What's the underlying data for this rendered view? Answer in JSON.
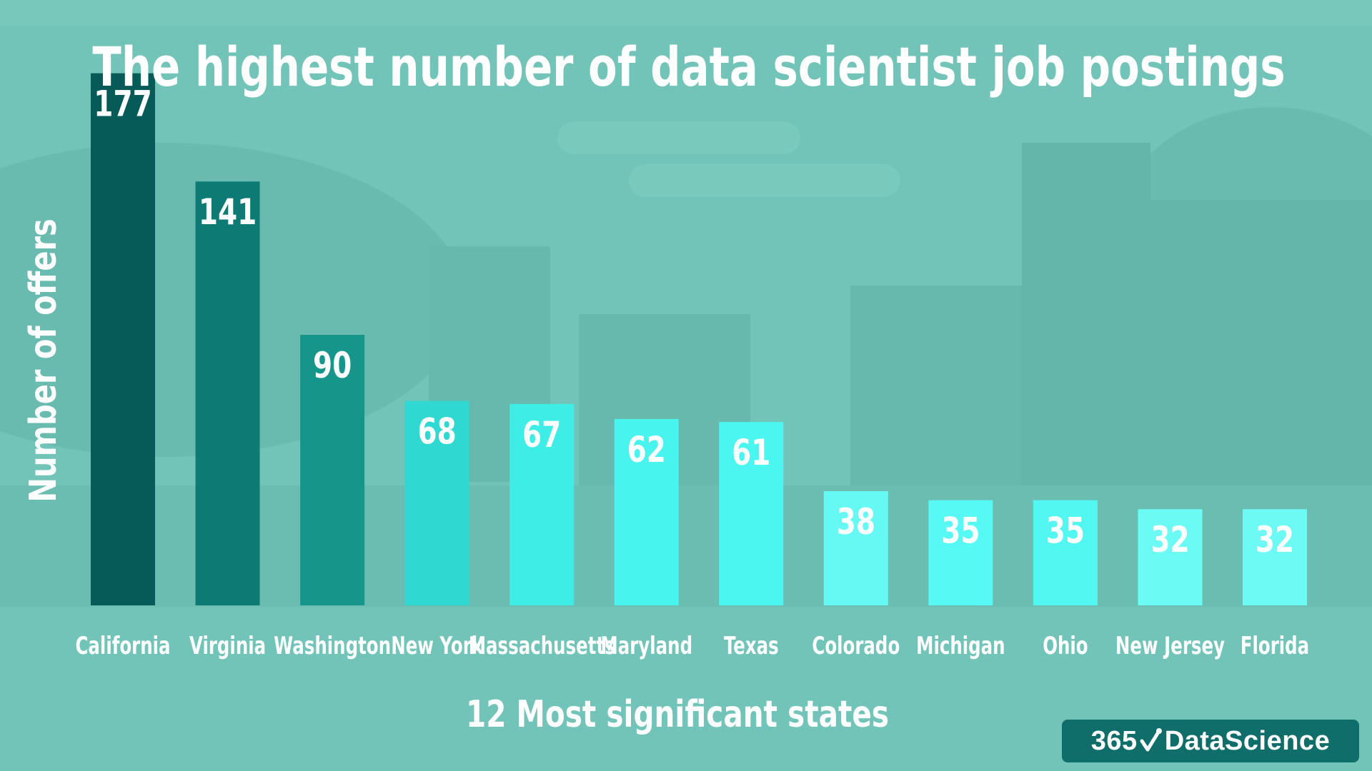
{
  "colors": {
    "background": "#72c4b8",
    "bars": [
      "#065b58",
      "#0d7b73",
      "#16968b",
      "#2fd8d0",
      "#3dede6",
      "#48f4ee",
      "#4cf6f0",
      "#66f9f3",
      "#56f9f4",
      "#53f7f2",
      "#6cfaf5",
      "#6dfaf5"
    ],
    "logo_bg": "#0f6e69"
  },
  "chart_data": {
    "type": "bar",
    "title": "The highest number of data scientist job postings",
    "xlabel": "12 Most significant states",
    "ylabel": "Number of offers",
    "categories": [
      "California",
      "Virginia",
      "Washington",
      "New York",
      "Massachusetts",
      "Maryland",
      "Texas",
      "Colorado",
      "Michigan",
      "Ohio",
      "New Jersey",
      "Florida"
    ],
    "values": [
      177,
      141,
      90,
      68,
      67,
      62,
      61,
      38,
      35,
      35,
      32,
      32
    ],
    "data_labels": [
      "177",
      "141",
      "90",
      "68",
      "67",
      "62",
      "61",
      "38",
      "35",
      "35",
      "32",
      "32"
    ],
    "ylim": [
      0,
      180
    ],
    "grid": false,
    "legend": "none"
  },
  "logo": {
    "left": "365",
    "right": "DataScience",
    "icon": "check-icon"
  }
}
